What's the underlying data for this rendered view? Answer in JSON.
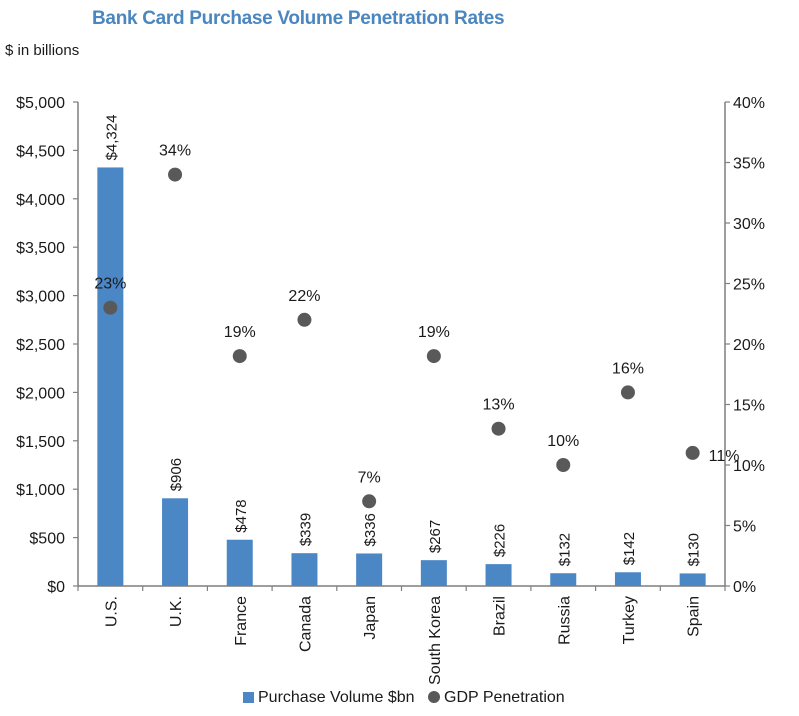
{
  "title": "Bank Card Purchase Volume Penetration Rates",
  "subtitle": "$ in billions",
  "chart_data": {
    "type": "bar",
    "title": "Bank Card Purchase Volume Penetration Rates",
    "categories": [
      "U.S.",
      "U.K.",
      "France",
      "Canada",
      "Japan",
      "South Korea",
      "Brazil",
      "Russia",
      "Turkey",
      "Spain"
    ],
    "series": [
      {
        "name": "Purchase Volume $bn",
        "type": "bar",
        "axis": "left",
        "values": [
          4324,
          906,
          478,
          339,
          336,
          267,
          226,
          132,
          142,
          130
        ],
        "labels": [
          "$4,324",
          "$906",
          "$478",
          "$339",
          "$336",
          "$267",
          "$226",
          "$132",
          "$142",
          "$130"
        ]
      },
      {
        "name": "GDP Penetration",
        "type": "scatter",
        "axis": "right",
        "values": [
          23,
          34,
          19,
          22,
          7,
          19,
          13,
          10,
          16,
          11
        ],
        "labels": [
          "23%",
          "34%",
          "19%",
          "22%",
          "7%",
          "19%",
          "13%",
          "10%",
          "16%",
          "11%"
        ]
      }
    ],
    "left_axis": {
      "ylim": [
        0,
        5000
      ],
      "ticks": [
        "$0",
        "$500",
        "$1,000",
        "$1,500",
        "$2,000",
        "$2,500",
        "$3,000",
        "$3,500",
        "$4,000",
        "$4,500",
        "$5,000"
      ]
    },
    "right_axis": {
      "ylim": [
        0,
        40
      ],
      "ticks": [
        "0%",
        "5%",
        "10%",
        "15%",
        "20%",
        "25%",
        "30%",
        "35%",
        "40%"
      ]
    },
    "legend_position": "bottom",
    "grid": false,
    "colors": {
      "bar": "#4b87c5",
      "dot": "#595959",
      "axis": "#7f7f7f",
      "title": "#4a86c0"
    }
  }
}
